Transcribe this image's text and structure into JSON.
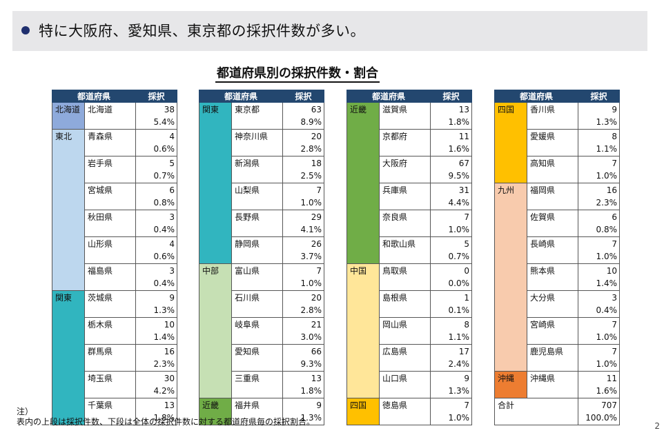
{
  "banner": {
    "text": "特に大阪府、愛知県、東京都の採択件数が多い。"
  },
  "title": "都道府県別の採択件数・割合",
  "headers": {
    "pref": "都道府県",
    "count": "採択"
  },
  "colors": {
    "北海道": "#8eaadb",
    "東北": "#bdd7ee",
    "関東": "#31b5bf",
    "中部": "#c6e0b4",
    "近畿": "#70ad47",
    "中国": "#ffe699",
    "四国": "#ffc000",
    "九州": "#f8cbad",
    "沖縄": "#ed7d31",
    "none": "#ffffff"
  },
  "tables": [
    {
      "rows": [
        {
          "region": "北海道",
          "pref": "北海道",
          "count": "38",
          "pct": "5.4%"
        },
        {
          "region": "東北",
          "pref": "青森県",
          "count": "4",
          "pct": "0.6%"
        },
        {
          "region": "東北",
          "pref": "岩手県",
          "count": "5",
          "pct": "0.7%"
        },
        {
          "region": "東北",
          "pref": "宮城県",
          "count": "6",
          "pct": "0.8%"
        },
        {
          "region": "東北",
          "pref": "秋田県",
          "count": "3",
          "pct": "0.4%"
        },
        {
          "region": "東北",
          "pref": "山形県",
          "count": "4",
          "pct": "0.6%"
        },
        {
          "region": "東北",
          "pref": "福島県",
          "count": "3",
          "pct": "0.4%"
        },
        {
          "region": "関東",
          "pref": "茨城県",
          "count": "9",
          "pct": "1.3%"
        },
        {
          "region": "関東",
          "pref": "栃木県",
          "count": "10",
          "pct": "1.4%"
        },
        {
          "region": "関東",
          "pref": "群馬県",
          "count": "16",
          "pct": "2.3%"
        },
        {
          "region": "関東",
          "pref": "埼玉県",
          "count": "30",
          "pct": "4.2%"
        },
        {
          "region": "関東",
          "pref": "千葉県",
          "count": "13",
          "pct": "1.8%"
        }
      ]
    },
    {
      "rows": [
        {
          "region": "関東",
          "pref": "東京都",
          "count": "63",
          "pct": "8.9%"
        },
        {
          "region": "関東",
          "pref": "神奈川県",
          "count": "20",
          "pct": "2.8%"
        },
        {
          "region": "関東",
          "pref": "新潟県",
          "count": "18",
          "pct": "2.5%"
        },
        {
          "region": "関東",
          "pref": "山梨県",
          "count": "7",
          "pct": "1.0%"
        },
        {
          "region": "関東",
          "pref": "長野県",
          "count": "29",
          "pct": "4.1%"
        },
        {
          "region": "関東",
          "pref": "静岡県",
          "count": "26",
          "pct": "3.7%"
        },
        {
          "region": "中部",
          "pref": "富山県",
          "count": "7",
          "pct": "1.0%"
        },
        {
          "region": "中部",
          "pref": "石川県",
          "count": "20",
          "pct": "2.8%"
        },
        {
          "region": "中部",
          "pref": "岐阜県",
          "count": "21",
          "pct": "3.0%"
        },
        {
          "region": "中部",
          "pref": "愛知県",
          "count": "66",
          "pct": "9.3%"
        },
        {
          "region": "中部",
          "pref": "三重県",
          "count": "13",
          "pct": "1.8%"
        },
        {
          "region": "近畿",
          "pref": "福井県",
          "count": "9",
          "pct": "1.3%"
        }
      ]
    },
    {
      "rows": [
        {
          "region": "近畿",
          "pref": "滋賀県",
          "count": "13",
          "pct": "1.8%"
        },
        {
          "region": "近畿",
          "pref": "京都府",
          "count": "11",
          "pct": "1.6%"
        },
        {
          "region": "近畿",
          "pref": "大阪府",
          "count": "67",
          "pct": "9.5%"
        },
        {
          "region": "近畿",
          "pref": "兵庫県",
          "count": "31",
          "pct": "4.4%"
        },
        {
          "region": "近畿",
          "pref": "奈良県",
          "count": "7",
          "pct": "1.0%"
        },
        {
          "region": "近畿",
          "pref": "和歌山県",
          "count": "5",
          "pct": "0.7%"
        },
        {
          "region": "中国",
          "pref": "鳥取県",
          "count": "0",
          "pct": "0.0%"
        },
        {
          "region": "中国",
          "pref": "島根県",
          "count": "1",
          "pct": "0.1%"
        },
        {
          "region": "中国",
          "pref": "岡山県",
          "count": "8",
          "pct": "1.1%"
        },
        {
          "region": "中国",
          "pref": "広島県",
          "count": "17",
          "pct": "2.4%"
        },
        {
          "region": "中国",
          "pref": "山口県",
          "count": "9",
          "pct": "1.3%"
        },
        {
          "region": "四国",
          "pref": "徳島県",
          "count": "7",
          "pct": "1.0%"
        }
      ]
    },
    {
      "rows": [
        {
          "region": "四国",
          "pref": "香川県",
          "count": "9",
          "pct": "1.3%"
        },
        {
          "region": "四国",
          "pref": "愛媛県",
          "count": "8",
          "pct": "1.1%"
        },
        {
          "region": "四国",
          "pref": "高知県",
          "count": "7",
          "pct": "1.0%"
        },
        {
          "region": "九州",
          "pref": "福岡県",
          "count": "16",
          "pct": "2.3%"
        },
        {
          "region": "九州",
          "pref": "佐賀県",
          "count": "6",
          "pct": "0.8%"
        },
        {
          "region": "九州",
          "pref": "長崎県",
          "count": "7",
          "pct": "1.0%"
        },
        {
          "region": "九州",
          "pref": "熊本県",
          "count": "10",
          "pct": "1.4%"
        },
        {
          "region": "九州",
          "pref": "大分県",
          "count": "3",
          "pct": "0.4%"
        },
        {
          "region": "九州",
          "pref": "宮崎県",
          "count": "7",
          "pct": "1.0%"
        },
        {
          "region": "九州",
          "pref": "鹿児島県",
          "count": "7",
          "pct": "1.0%"
        },
        {
          "region": "沖縄",
          "pref": "沖縄県",
          "count": "11",
          "pct": "1.6%"
        }
      ],
      "total": {
        "label": "合計",
        "count": "707",
        "pct": "100.0%"
      }
    }
  ],
  "note": {
    "line1": "注）",
    "line2": "表内の上段は採択件数、下段は全体の採択件数に対する都道府県毎の採択割合。"
  },
  "page_number": "2"
}
